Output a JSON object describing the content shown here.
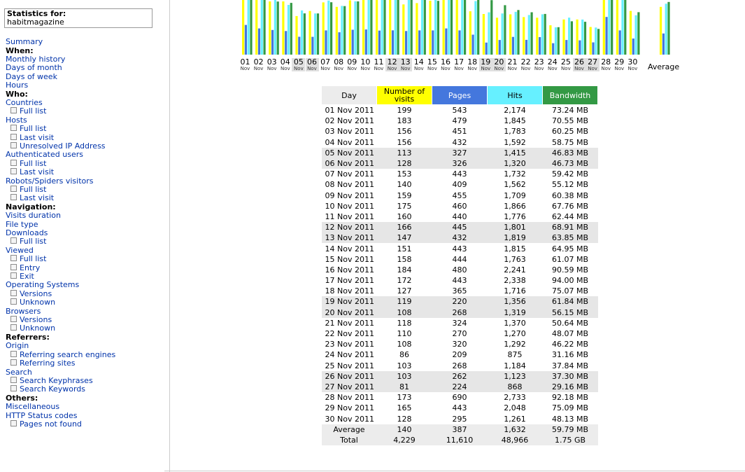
{
  "stats_for": {
    "label": "Statistics for:",
    "site": "habitmagazine"
  },
  "menu": {
    "summary": "Summary",
    "when": "When:",
    "monthly_history": "Monthly history",
    "days_of_month": "Days of month",
    "days_of_week": "Days of week",
    "hours": "Hours",
    "who": "Who:",
    "countries": "Countries",
    "countries_full": "Full list",
    "hosts": "Hosts",
    "hosts_full": "Full list",
    "hosts_last": "Last visit",
    "hosts_unresolved": "Unresolved IP Address",
    "auth_users": "Authenticated users",
    "auth_full": "Full list",
    "auth_last": "Last visit",
    "robots": "Robots/Spiders visitors",
    "robots_full": "Full list",
    "robots_last": "Last visit",
    "navigation": "Navigation:",
    "visits_duration": "Visits duration",
    "file_type": "File type",
    "downloads": "Downloads",
    "downloads_full": "Full list",
    "viewed": "Viewed",
    "viewed_full": "Full list",
    "viewed_entry": "Entry",
    "viewed_exit": "Exit",
    "os": "Operating Systems",
    "os_versions": "Versions",
    "os_unknown": "Unknown",
    "browsers": "Browsers",
    "browsers_versions": "Versions",
    "browsers_unknown": "Unknown",
    "referrers": "Referrers:",
    "origin": "Origin",
    "ref_search_engines": "Referring search engines",
    "ref_sites": "Referring sites",
    "search": "Search",
    "search_keyphrases": "Search Keyphrases",
    "search_keywords": "Search Keywords",
    "others": "Others:",
    "misc": "Miscellaneous",
    "http_status": "HTTP Status codes",
    "pages_not_found": "Pages not found"
  },
  "chart_data": {
    "type": "bar",
    "month_label": "Nov",
    "categories": [
      "01",
      "02",
      "03",
      "04",
      "05",
      "06",
      "07",
      "08",
      "09",
      "10",
      "11",
      "12",
      "13",
      "14",
      "15",
      "16",
      "17",
      "18",
      "19",
      "20",
      "21",
      "22",
      "23",
      "24",
      "25",
      "26",
      "27",
      "28",
      "29",
      "30"
    ],
    "weekend_days": [
      "05",
      "06",
      "12",
      "13",
      "19",
      "20",
      "26",
      "27"
    ],
    "average_label": "Average",
    "series": [
      {
        "name": "Number of visits",
        "color": "#ffff00",
        "values": [
          199,
          183,
          156,
          156,
          113,
          128,
          153,
          140,
          159,
          175,
          160,
          166,
          147,
          151,
          158,
          184,
          172,
          127,
          119,
          108,
          118,
          110,
          108,
          86,
          103,
          103,
          81,
          173,
          165,
          128
        ],
        "average": 140
      },
      {
        "name": "Pages",
        "color": "#4477dd",
        "values": [
          543,
          479,
          451,
          432,
          327,
          326,
          443,
          409,
          455,
          460,
          440,
          445,
          432,
          443,
          444,
          480,
          443,
          365,
          220,
          268,
          324,
          270,
          320,
          209,
          268,
          262,
          224,
          690,
          443,
          295
        ],
        "average": 387
      },
      {
        "name": "Hits",
        "color": "#66f0ff",
        "values": [
          2174,
          1845,
          1783,
          1592,
          1415,
          1320,
          1732,
          1562,
          1709,
          1866,
          1776,
          1801,
          1819,
          1815,
          1763,
          2241,
          2338,
          1716,
          1356,
          1319,
          1370,
          1270,
          1292,
          875,
          1184,
          1123,
          868,
          2733,
          2048,
          1261
        ],
        "average": 1632
      },
      {
        "name": "Bandwidth",
        "color": "#339944",
        "values": [
          73.24,
          70.55,
          60.25,
          58.75,
          46.83,
          46.73,
          59.42,
          55.12,
          60.38,
          67.76,
          62.44,
          68.91,
          63.85,
          64.95,
          61.07,
          90.59,
          94.0,
          75.07,
          61.84,
          56.15,
          50.64,
          48.07,
          46.22,
          31.16,
          37.84,
          37.3,
          29.16,
          92.18,
          75.09,
          48.13
        ],
        "average": 59.79
      }
    ]
  },
  "table": {
    "headers": [
      "Day",
      "Number of visits",
      "Pages",
      "Hits",
      "Bandwidth"
    ],
    "rows": [
      {
        "day": "01 Nov 2011",
        "visits": "199",
        "pages": "543",
        "hits": "2,174",
        "bw": "73.24 MB"
      },
      {
        "day": "02 Nov 2011",
        "visits": "183",
        "pages": "479",
        "hits": "1,845",
        "bw": "70.55 MB"
      },
      {
        "day": "03 Nov 2011",
        "visits": "156",
        "pages": "451",
        "hits": "1,783",
        "bw": "60.25 MB"
      },
      {
        "day": "04 Nov 2011",
        "visits": "156",
        "pages": "432",
        "hits": "1,592",
        "bw": "58.75 MB"
      },
      {
        "day": "05 Nov 2011",
        "visits": "113",
        "pages": "327",
        "hits": "1,415",
        "bw": "46.83 MB",
        "weekend": true
      },
      {
        "day": "06 Nov 2011",
        "visits": "128",
        "pages": "326",
        "hits": "1,320",
        "bw": "46.73 MB",
        "weekend": true
      },
      {
        "day": "07 Nov 2011",
        "visits": "153",
        "pages": "443",
        "hits": "1,732",
        "bw": "59.42 MB"
      },
      {
        "day": "08 Nov 2011",
        "visits": "140",
        "pages": "409",
        "hits": "1,562",
        "bw": "55.12 MB"
      },
      {
        "day": "09 Nov 2011",
        "visits": "159",
        "pages": "455",
        "hits": "1,709",
        "bw": "60.38 MB"
      },
      {
        "day": "10 Nov 2011",
        "visits": "175",
        "pages": "460",
        "hits": "1,866",
        "bw": "67.76 MB"
      },
      {
        "day": "11 Nov 2011",
        "visits": "160",
        "pages": "440",
        "hits": "1,776",
        "bw": "62.44 MB"
      },
      {
        "day": "12 Nov 2011",
        "visits": "166",
        "pages": "445",
        "hits": "1,801",
        "bw": "68.91 MB",
        "weekend": true
      },
      {
        "day": "13 Nov 2011",
        "visits": "147",
        "pages": "432",
        "hits": "1,819",
        "bw": "63.85 MB",
        "weekend": true
      },
      {
        "day": "14 Nov 2011",
        "visits": "151",
        "pages": "443",
        "hits": "1,815",
        "bw": "64.95 MB"
      },
      {
        "day": "15 Nov 2011",
        "visits": "158",
        "pages": "444",
        "hits": "1,763",
        "bw": "61.07 MB"
      },
      {
        "day": "16 Nov 2011",
        "visits": "184",
        "pages": "480",
        "hits": "2,241",
        "bw": "90.59 MB"
      },
      {
        "day": "17 Nov 2011",
        "visits": "172",
        "pages": "443",
        "hits": "2,338",
        "bw": "94.00 MB"
      },
      {
        "day": "18 Nov 2011",
        "visits": "127",
        "pages": "365",
        "hits": "1,716",
        "bw": "75.07 MB"
      },
      {
        "day": "19 Nov 2011",
        "visits": "119",
        "pages": "220",
        "hits": "1,356",
        "bw": "61.84 MB",
        "weekend": true
      },
      {
        "day": "20 Nov 2011",
        "visits": "108",
        "pages": "268",
        "hits": "1,319",
        "bw": "56.15 MB",
        "weekend": true
      },
      {
        "day": "21 Nov 2011",
        "visits": "118",
        "pages": "324",
        "hits": "1,370",
        "bw": "50.64 MB"
      },
      {
        "day": "22 Nov 2011",
        "visits": "110",
        "pages": "270",
        "hits": "1,270",
        "bw": "48.07 MB"
      },
      {
        "day": "23 Nov 2011",
        "visits": "108",
        "pages": "320",
        "hits": "1,292",
        "bw": "46.22 MB"
      },
      {
        "day": "24 Nov 2011",
        "visits": "86",
        "pages": "209",
        "hits": "875",
        "bw": "31.16 MB"
      },
      {
        "day": "25 Nov 2011",
        "visits": "103",
        "pages": "268",
        "hits": "1,184",
        "bw": "37.84 MB"
      },
      {
        "day": "26 Nov 2011",
        "visits": "103",
        "pages": "262",
        "hits": "1,123",
        "bw": "37.30 MB",
        "weekend": true
      },
      {
        "day": "27 Nov 2011",
        "visits": "81",
        "pages": "224",
        "hits": "868",
        "bw": "29.16 MB",
        "weekend": true
      },
      {
        "day": "28 Nov 2011",
        "visits": "173",
        "pages": "690",
        "hits": "2,733",
        "bw": "92.18 MB"
      },
      {
        "day": "29 Nov 2011",
        "visits": "165",
        "pages": "443",
        "hits": "2,048",
        "bw": "75.09 MB"
      },
      {
        "day": "30 Nov 2011",
        "visits": "128",
        "pages": "295",
        "hits": "1,261",
        "bw": "48.13 MB"
      }
    ],
    "average": {
      "label": "Average",
      "visits": "140",
      "pages": "387",
      "hits": "1,632",
      "bw": "59.79 MB"
    },
    "total": {
      "label": "Total",
      "visits": "4,229",
      "pages": "11,610",
      "hits": "48,966",
      "bw": "1.75 GB"
    }
  }
}
